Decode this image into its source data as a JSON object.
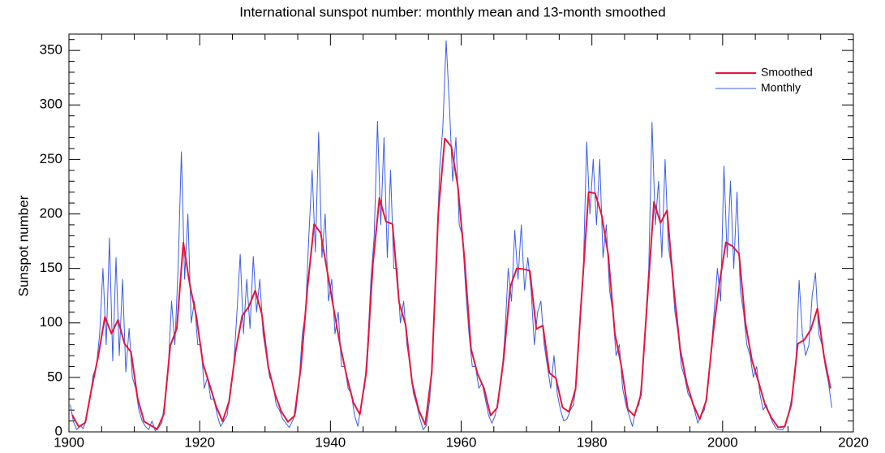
{
  "chart_data": {
    "type": "line",
    "title": "International sunspot number: monthly mean and 13-month smoothed",
    "y_label": "Sunspot number",
    "xlim": [
      1900,
      2020
    ],
    "xticks": [
      1900,
      1920,
      1940,
      1960,
      1980,
      2000,
      2020
    ],
    "ylim": [
      0,
      365
    ],
    "yticks": [
      0,
      50,
      100,
      150,
      200,
      250,
      300,
      350
    ],
    "legend": "upper right",
    "series": [
      {
        "name": "Smoothed",
        "color": "#e8143c",
        "x": [
          1900.5,
          1901.5,
          1902.5,
          1903.5,
          1904.5,
          1905.5,
          1906.5,
          1907.5,
          1908.5,
          1909.5,
          1910.5,
          1911.5,
          1912.5,
          1913.5,
          1914.5,
          1915.5,
          1916.5,
          1917.5,
          1918.5,
          1919.5,
          1920.5,
          1921.5,
          1922.5,
          1923.5,
          1924.5,
          1925.5,
          1926.5,
          1927.5,
          1928.5,
          1929.5,
          1930.5,
          1931.5,
          1932.5,
          1933.5,
          1934.5,
          1935.5,
          1936.5,
          1937.5,
          1938.5,
          1939.5,
          1940.5,
          1941.5,
          1942.5,
          1943.5,
          1944.5,
          1945.5,
          1946.5,
          1947.5,
          1948.5,
          1949.5,
          1950.5,
          1951.5,
          1952.5,
          1953.5,
          1954.5,
          1955.5,
          1956.5,
          1957.5,
          1958.5,
          1959.5,
          1960.5,
          1961.5,
          1962.5,
          1963.5,
          1964.5,
          1965.5,
          1966.5,
          1967.5,
          1968.5,
          1969.5,
          1970.5,
          1971.5,
          1972.5,
          1973.5,
          1974.5,
          1975.5,
          1976.5,
          1977.5,
          1978.5,
          1979.5,
          1980.5,
          1981.5,
          1982.5,
          1983.5,
          1984.5,
          1985.5,
          1986.5,
          1987.5,
          1988.5,
          1989.5,
          1990.5,
          1991.5,
          1992.5,
          1993.5,
          1994.5,
          1995.5,
          1996.5,
          1997.5,
          1998.5,
          1999.5,
          2000.5,
          2001.5,
          2002.5,
          2003.5,
          2004.5,
          2005.5,
          2006.5,
          2007.5,
          2008.5,
          2009.5,
          2010.5,
          2011.5,
          2012.5,
          2013.5,
          2014.5,
          2015.5,
          2016.5
        ],
        "values": [
          15.7,
          4.6,
          8.5,
          40.8,
          70.1,
          105.5,
          90.1,
          102.8,
          80.9,
          73.2,
          30.9,
          9.5,
          6.0,
          2.4,
          16.1,
          79.0,
          95.0,
          173.6,
          134.6,
          105.7,
          62.7,
          43.5,
          23.7,
          9.7,
          27.9,
          74.0,
          106.5,
          114.7,
          129.7,
          108.2,
          59.4,
          35.1,
          18.6,
          9.2,
          14.6,
          60.2,
          132.8,
          190.6,
          182.6,
          148.0,
          113.0,
          79.2,
          50.8,
          27.1,
          16.1,
          55.3,
          154.3,
          214.7,
          193.0,
          190.7,
          118.9,
          98.3,
          45.0,
          20.1,
          6.6,
          54.2,
          200.7,
          269.3,
          261.7,
          225.1,
          159.0,
          76.4,
          53.4,
          39.9,
          15.0,
          22.0,
          66.8,
          132.9,
          150.0,
          149.4,
          148.0,
          94.4,
          97.6,
          54.1,
          49.2,
          22.5,
          18.4,
          39.3,
          131.0,
          220.1,
          218.9,
          198.9,
          162.4,
          91.0,
          60.5,
          20.6,
          14.8,
          33.9,
          123.0,
          211.1,
          191.8,
          203.3,
          133.0,
          76.1,
          44.9,
          25.1,
          11.6,
          28.9,
          88.3,
          136.3,
          173.9,
          170.4,
          163.6,
          99.3,
          65.3,
          45.8,
          24.7,
          12.6,
          4.2,
          4.8,
          24.9,
          80.8,
          84.5,
          94.0,
          113.3,
          69.8,
          39.8
        ]
      },
      {
        "name": "Monthly",
        "color": "#3a5ee8",
        "x": [
          1900.2,
          1900.7,
          1901.2,
          1901.7,
          1902.2,
          1902.7,
          1903.2,
          1903.7,
          1904.2,
          1904.7,
          1905.2,
          1905.7,
          1906.2,
          1906.7,
          1907.2,
          1907.7,
          1908.2,
          1908.7,
          1909.2,
          1909.7,
          1910.2,
          1910.7,
          1911.2,
          1911.7,
          1912.2,
          1912.7,
          1913.2,
          1913.7,
          1914.2,
          1914.7,
          1915.2,
          1915.7,
          1916.2,
          1916.7,
          1917.2,
          1917.7,
          1918.2,
          1918.7,
          1919.2,
          1919.7,
          1920.2,
          1920.7,
          1921.2,
          1921.7,
          1922.2,
          1922.7,
          1923.2,
          1923.7,
          1924.2,
          1924.7,
          1925.2,
          1925.7,
          1926.2,
          1926.7,
          1927.2,
          1927.7,
          1928.2,
          1928.7,
          1929.2,
          1929.7,
          1930.2,
          1930.7,
          1931.2,
          1931.7,
          1932.2,
          1932.7,
          1933.2,
          1933.7,
          1934.2,
          1934.7,
          1935.2,
          1935.7,
          1936.2,
          1936.7,
          1937.2,
          1937.7,
          1938.2,
          1938.7,
          1939.2,
          1939.7,
          1940.2,
          1940.7,
          1941.2,
          1941.7,
          1942.2,
          1942.7,
          1943.2,
          1943.7,
          1944.2,
          1944.7,
          1945.2,
          1945.7,
          1946.2,
          1946.7,
          1947.2,
          1947.7,
          1948.2,
          1948.7,
          1949.2,
          1949.7,
          1950.2,
          1950.7,
          1951.2,
          1951.7,
          1952.2,
          1952.7,
          1953.2,
          1953.7,
          1954.2,
          1954.7,
          1955.2,
          1955.7,
          1956.2,
          1956.7,
          1957.2,
          1957.7,
          1958.2,
          1958.7,
          1959.2,
          1959.7,
          1960.2,
          1960.7,
          1961.2,
          1961.7,
          1962.2,
          1962.7,
          1963.2,
          1963.7,
          1964.2,
          1964.7,
          1965.2,
          1965.7,
          1966.2,
          1966.7,
          1967.2,
          1967.7,
          1968.2,
          1968.7,
          1969.2,
          1969.7,
          1970.2,
          1970.7,
          1971.2,
          1971.7,
          1972.2,
          1972.7,
          1973.2,
          1973.7,
          1974.2,
          1974.7,
          1975.2,
          1975.7,
          1976.2,
          1976.7,
          1977.2,
          1977.7,
          1978.2,
          1978.7,
          1979.2,
          1979.7,
          1980.2,
          1980.7,
          1981.2,
          1981.7,
          1982.2,
          1982.7,
          1983.2,
          1983.7,
          1984.2,
          1984.7,
          1985.2,
          1985.7,
          1986.2,
          1986.7,
          1987.2,
          1987.7,
          1988.2,
          1988.7,
          1989.2,
          1989.7,
          1990.2,
          1990.7,
          1991.2,
          1991.7,
          1992.2,
          1992.7,
          1993.2,
          1993.7,
          1994.2,
          1994.7,
          1995.2,
          1995.7,
          1996.2,
          1996.7,
          1997.2,
          1997.7,
          1998.2,
          1998.7,
          1999.2,
          1999.7,
          2000.2,
          2000.7,
          2001.2,
          2001.7,
          2002.2,
          2002.7,
          2003.2,
          2003.7,
          2004.2,
          2004.7,
          2005.2,
          2005.7,
          2006.2,
          2006.7,
          2007.2,
          2007.7,
          2008.2,
          2008.7,
          2009.2,
          2009.7,
          2010.2,
          2010.7,
          2011.2,
          2011.7,
          2012.2,
          2012.7,
          2013.2,
          2013.7,
          2014.2,
          2014.7,
          2015.2,
          2015.7,
          2016.2,
          2016.7
        ],
        "values": [
          25,
          9,
          2,
          6,
          3,
          14,
          30,
          52,
          60,
          90,
          150,
          80,
          178,
          65,
          160,
          70,
          140,
          55,
          95,
          50,
          40,
          20,
          10,
          5,
          2,
          10,
          1,
          4,
          8,
          30,
          60,
          120,
          80,
          150,
          257,
          140,
          200,
          100,
          120,
          80,
          80,
          40,
          50,
          30,
          30,
          15,
          5,
          10,
          15,
          40,
          60,
          110,
          163,
          90,
          140,
          95,
          161,
          110,
          140,
          90,
          70,
          50,
          45,
          25,
          20,
          12,
          8,
          4,
          10,
          18,
          45,
          90,
          110,
          180,
          240,
          165,
          275,
          160,
          200,
          120,
          140,
          90,
          110,
          60,
          60,
          40,
          35,
          15,
          5,
          25,
          40,
          80,
          140,
          180,
          285,
          190,
          270,
          160,
          240,
          150,
          150,
          100,
          120,
          80,
          60,
          35,
          25,
          12,
          2,
          6,
          30,
          80,
          150,
          240,
          280,
          359,
          300,
          230,
          270,
          190,
          180,
          130,
          90,
          60,
          60,
          40,
          45,
          30,
          15,
          8,
          15,
          30,
          50,
          90,
          150,
          120,
          185,
          140,
          190,
          130,
          160,
          130,
          80,
          110,
          120,
          80,
          60,
          40,
          70,
          35,
          20,
          10,
          12,
          20,
          25,
          50,
          110,
          150,
          266,
          200,
          250,
          190,
          250,
          160,
          190,
          130,
          110,
          70,
          80,
          40,
          25,
          15,
          5,
          20,
          25,
          50,
          100,
          150,
          284,
          190,
          230,
          160,
          250,
          170,
          150,
          110,
          90,
          60,
          50,
          35,
          30,
          20,
          8,
          15,
          20,
          40,
          70,
          110,
          150,
          120,
          244,
          160,
          230,
          150,
          220,
          130,
          110,
          80,
          70,
          50,
          60,
          35,
          20,
          25,
          15,
          8,
          3,
          2,
          2,
          8,
          20,
          35,
          60,
          139,
          90,
          70,
          80,
          125,
          146,
          90,
          80,
          60,
          45,
          22
        ]
      }
    ]
  }
}
